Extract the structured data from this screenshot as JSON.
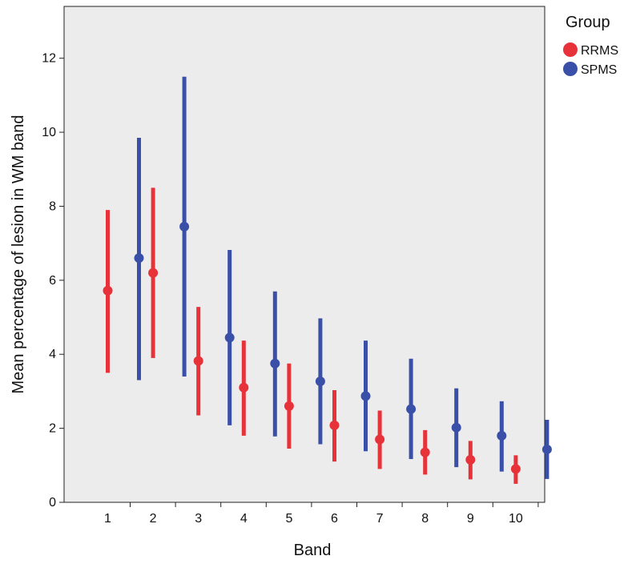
{
  "chart_data": {
    "type": "errorbar",
    "title": "",
    "xlabel": "Band",
    "ylabel": "Mean percentage of lesion in WM band",
    "categories": [
      "1",
      "2",
      "3",
      "4",
      "5",
      "6",
      "7",
      "8",
      "9",
      "10"
    ],
    "ylim": [
      0,
      13.4
    ],
    "yticks": [
      0,
      2,
      4,
      6,
      8,
      10,
      12
    ],
    "grid": false,
    "legend": {
      "title": "Group",
      "position": "right"
    },
    "series": [
      {
        "name": "RRMS",
        "color": "#e8323a",
        "mean": [
          5.72,
          6.2,
          3.82,
          3.1,
          2.6,
          2.08,
          1.7,
          1.35,
          1.15,
          0.9
        ],
        "lower": [
          3.5,
          3.9,
          2.35,
          1.8,
          1.45,
          1.1,
          0.9,
          0.75,
          0.62,
          0.5
        ],
        "upper": [
          7.9,
          8.5,
          5.28,
          4.37,
          3.75,
          3.03,
          2.48,
          1.95,
          1.66,
          1.27
        ]
      },
      {
        "name": "SPMS",
        "color": "#3a4fa8",
        "mean": [
          6.6,
          7.45,
          4.45,
          3.75,
          3.27,
          2.87,
          2.52,
          2.02,
          1.8,
          1.43
        ],
        "lower": [
          3.3,
          3.4,
          2.08,
          1.78,
          1.57,
          1.38,
          1.17,
          0.95,
          0.83,
          0.63
        ],
        "upper": [
          9.85,
          11.5,
          6.82,
          5.7,
          4.97,
          4.37,
          3.88,
          3.08,
          2.73,
          2.23
        ]
      }
    ]
  }
}
